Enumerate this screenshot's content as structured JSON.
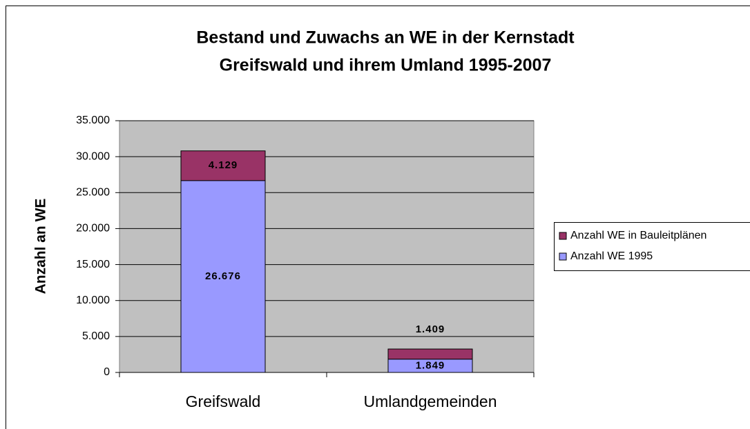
{
  "chart_data": {
    "type": "stacked_bar",
    "title": [
      "Bestand und Zuwachs an WE in der Kernstadt",
      "Greifswald und ihrem Umland 1995-2007"
    ],
    "y_label": "Anzahl an WE",
    "categories": [
      "Greifswald",
      "Umlandgemeinden"
    ],
    "series": [
      {
        "name": "Anzahl WE 1995",
        "color": "#9999ff",
        "values": [
          26676,
          1849
        ],
        "value_labels": [
          "26.676",
          "1.849"
        ]
      },
      {
        "name": "Anzahl WE in Bauleitplänen",
        "color": "#993366",
        "values": [
          4129,
          1409
        ],
        "value_labels": [
          "4.129",
          "1.409"
        ]
      }
    ],
    "ylim": [
      0,
      35000
    ],
    "yticks": [
      {
        "value": 0,
        "label": "0"
      },
      {
        "value": 5000,
        "label": "5.000"
      },
      {
        "value": 10000,
        "label": "10.000"
      },
      {
        "value": 15000,
        "label": "15.000"
      },
      {
        "value": 20000,
        "label": "20.000"
      },
      {
        "value": 25000,
        "label": "25.000"
      },
      {
        "value": 30000,
        "label": "30.000"
      },
      {
        "value": 35000,
        "label": "35.000"
      }
    ],
    "grid": true,
    "legend": "right"
  }
}
